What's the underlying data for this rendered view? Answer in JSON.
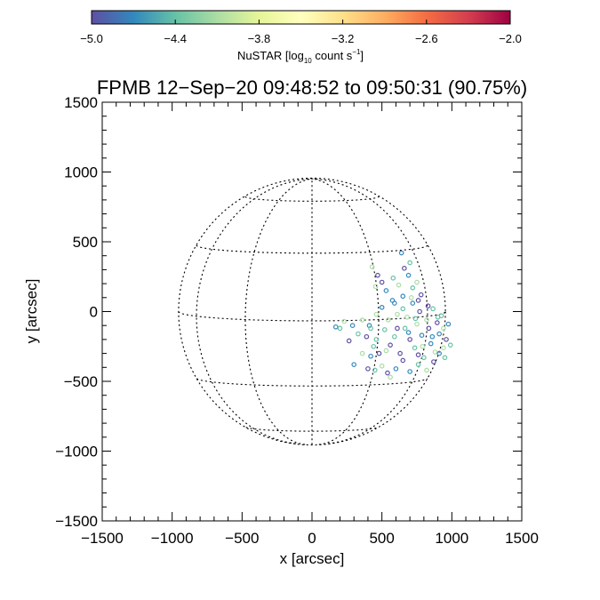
{
  "chart_data": {
    "type": "scatter",
    "title": "FPMB 12−Sep−20 09:48:52 to 09:50:31 (90.75%)",
    "xlabel": "x [arcsec]",
    "ylabel": "y [arcsec]",
    "xlim": [
      -1500,
      1500
    ],
    "ylim": [
      -1500,
      1500
    ],
    "x_ticks": [
      -1500,
      -1000,
      -500,
      0,
      500,
      1000,
      1500
    ],
    "x_tick_labels": [
      "−1500",
      "−1000",
      "−500",
      "0",
      "500",
      "1000",
      "1500"
    ],
    "y_ticks": [
      -1500,
      -1000,
      -500,
      0,
      500,
      1000,
      1500
    ],
    "y_tick_labels": [
      "−1500",
      "−1000",
      "−500",
      "0",
      "500",
      "1000",
      "1500"
    ],
    "grid": false,
    "overlay": "solar limb and heliographic grid (dotted)",
    "solar_radius": 954,
    "colorbar": {
      "placement": "top",
      "colormap": "spectral",
      "range": [
        -5.0,
        -2.0
      ],
      "ticks": [
        -5.0,
        -4.4,
        -3.8,
        -3.2,
        -2.6,
        -2.0
      ],
      "tick_labels": [
        "−5.0",
        "−4.4",
        "−3.8",
        "−3.2",
        "−2.6",
        "−2.0"
      ],
      "label_main": "NuSTAR [log",
      "label_sub": "10",
      "label_mid": " count s",
      "label_sup": "−1",
      "label_end": "]"
    },
    "series": [
      {
        "points": [
          [
            170,
            -110
          ],
          [
            200,
            -120
          ],
          [
            230,
            -70
          ],
          [
            265,
            -210
          ],
          [
            290,
            -100
          ],
          [
            330,
            -160
          ],
          [
            360,
            -60
          ],
          [
            390,
            -180
          ],
          [
            410,
            -100
          ],
          [
            440,
            -250
          ],
          [
            460,
            -20
          ],
          [
            480,
            -300
          ],
          [
            500,
            30
          ],
          [
            520,
            -130
          ],
          [
            545,
            -60
          ],
          [
            560,
            -240
          ],
          [
            575,
            80
          ],
          [
            590,
            -180
          ],
          [
            610,
            -20
          ],
          [
            630,
            -300
          ],
          [
            650,
            110
          ],
          [
            665,
            -120
          ],
          [
            680,
            -40
          ],
          [
            700,
            -200
          ],
          [
            720,
            60
          ],
          [
            735,
            -260
          ],
          [
            750,
            -90
          ],
          [
            770,
            0
          ],
          [
            785,
            -170
          ],
          [
            800,
            -330
          ],
          [
            820,
            -60
          ],
          [
            835,
            -120
          ],
          [
            850,
            -230
          ],
          [
            865,
            20
          ],
          [
            880,
            -290
          ],
          [
            895,
            -80
          ],
          [
            910,
            -160
          ],
          [
            925,
            -30
          ],
          [
            940,
            -260
          ],
          [
            960,
            -200
          ],
          [
            975,
            -90
          ],
          [
            990,
            -240
          ],
          [
            455,
            180
          ],
          [
            500,
            210
          ],
          [
            530,
            150
          ],
          [
            580,
            240
          ],
          [
            620,
            190
          ],
          [
            660,
            310
          ],
          [
            690,
            260
          ],
          [
            720,
            170
          ],
          [
            750,
            210
          ],
          [
            780,
            120
          ],
          [
            640,
            420
          ],
          [
            700,
            350
          ],
          [
            430,
            320
          ],
          [
            470,
            260
          ],
          [
            420,
            -320
          ],
          [
            450,
            -420
          ],
          [
            500,
            -390
          ],
          [
            540,
            -440
          ],
          [
            600,
            -410
          ],
          [
            420,
            -120
          ],
          [
            560,
            -470
          ],
          [
            650,
            -350
          ],
          [
            700,
            -430
          ],
          [
            760,
            -380
          ],
          [
            820,
            -420
          ],
          [
            870,
            -360
          ],
          [
            910,
            -300
          ],
          [
            950,
            -330
          ],
          [
            360,
            -300
          ],
          [
            400,
            -410
          ],
          [
            300,
            -380
          ],
          [
            460,
            -200
          ],
          [
            530,
            -280
          ],
          [
            610,
            -120
          ],
          [
            690,
            -150
          ],
          [
            740,
            -50
          ],
          [
            790,
            -250
          ],
          [
            830,
            40
          ],
          [
            860,
            -180
          ],
          [
            900,
            -40
          ],
          [
            940,
            -120
          ],
          [
            760,
            -310
          ],
          [
            590,
            60
          ],
          [
            650,
            20
          ],
          [
            710,
            100
          ],
          [
            760,
            80
          ]
        ]
      }
    ]
  }
}
